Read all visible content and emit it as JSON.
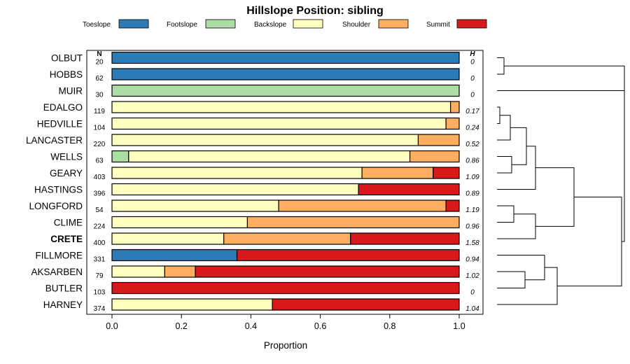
{
  "chart_data": {
    "type": "bar",
    "stacked": true,
    "orientation": "horizontal",
    "title": "Hillslope Position: sibling",
    "xlabel": "Proportion",
    "xlim": [
      0,
      1
    ],
    "x_ticks": [
      "0.0",
      "0.2",
      "0.4",
      "0.6",
      "0.8",
      "1.0"
    ],
    "n_header": "N",
    "h_header": "H",
    "highlight": "CRETE",
    "legend_position": "top",
    "categories": [
      "Toeslope",
      "Footslope",
      "Backslope",
      "Shoulder",
      "Summit"
    ],
    "colors": {
      "Toeslope": "#2c7bb6",
      "Footslope": "#abdda4",
      "Backslope": "#ffffbf",
      "Shoulder": "#fdae61",
      "Summit": "#d7191c"
    },
    "rows": [
      {
        "name": "OLBUT",
        "n": "20",
        "h": "0",
        "values": [
          1,
          0,
          0,
          0,
          0
        ]
      },
      {
        "name": "HOBBS",
        "n": "62",
        "h": "0",
        "values": [
          1,
          0,
          0,
          0,
          0
        ]
      },
      {
        "name": "MUIR",
        "n": "30",
        "h": "0",
        "values": [
          0,
          1,
          0,
          0,
          0
        ]
      },
      {
        "name": "EDALGO",
        "n": "119",
        "h": "0.17",
        "values": [
          0,
          0,
          0.975,
          0.025,
          0
        ]
      },
      {
        "name": "HEDVILLE",
        "n": "104",
        "h": "0.24",
        "values": [
          0,
          0,
          0.962,
          0.038,
          0
        ]
      },
      {
        "name": "LANCASTER",
        "n": "220",
        "h": "0.52",
        "values": [
          0,
          0,
          0.882,
          0.118,
          0
        ]
      },
      {
        "name": "WELLS",
        "n": "63",
        "h": "0.86",
        "values": [
          0,
          0.048,
          0.81,
          0.142,
          0
        ]
      },
      {
        "name": "GEARY",
        "n": "403",
        "h": "1.09",
        "values": [
          0,
          0,
          0.72,
          0.205,
          0.075
        ]
      },
      {
        "name": "HASTINGS",
        "n": "396",
        "h": "0.89",
        "values": [
          0,
          0,
          0.71,
          0,
          0.29
        ]
      },
      {
        "name": "LONGFORD",
        "n": "54",
        "h": "1.19",
        "values": [
          0,
          0,
          0.48,
          0.482,
          0.038
        ]
      },
      {
        "name": "CLIME",
        "n": "224",
        "h": "0.96",
        "values": [
          0,
          0,
          0.39,
          0.61,
          0
        ]
      },
      {
        "name": "CRETE",
        "n": "400",
        "h": "1.58",
        "values": [
          0,
          0,
          0.322,
          0.365,
          0.313
        ]
      },
      {
        "name": "FILLMORE",
        "n": "331",
        "h": "0.94",
        "values": [
          0.36,
          0,
          0,
          0,
          0.64
        ]
      },
      {
        "name": "AKSARBEN",
        "n": "79",
        "h": "1.02",
        "values": [
          0,
          0,
          0.152,
          0.088,
          0.76
        ]
      },
      {
        "name": "BUTLER",
        "n": "103",
        "h": "0",
        "values": [
          0,
          0,
          0,
          0,
          1
        ]
      },
      {
        "name": "HARNEY",
        "n": "374",
        "h": "1.04",
        "values": [
          0,
          0,
          0.462,
          0,
          0.538
        ]
      }
    ]
  }
}
